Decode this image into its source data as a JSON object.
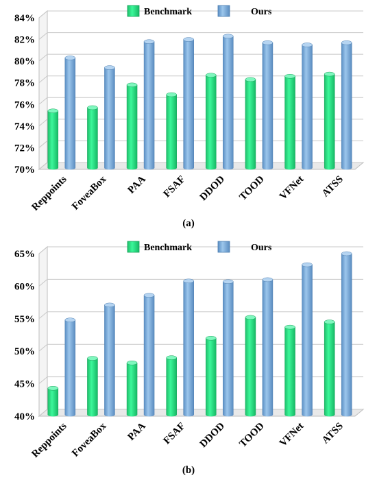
{
  "chart_data": [
    {
      "type": "bar",
      "caption": "(a)",
      "categories": [
        "Reppoints",
        "FoveaBox",
        "PAA",
        "FSAF",
        "DDOD",
        "TOOD",
        "VFNet",
        "ATSS"
      ],
      "series": [
        {
          "name": "Benchmark",
          "values": [
            75.4,
            75.7,
            77.8,
            76.9,
            78.7,
            78.3,
            78.6,
            78.8
          ]
        },
        {
          "name": "Ours",
          "values": [
            80.3,
            79.4,
            81.8,
            82.0,
            82.3,
            81.7,
            81.5,
            81.7
          ]
        }
      ],
      "yticks": [
        "70%",
        "72%",
        "74%",
        "76%",
        "78%",
        "80%",
        "82%",
        "84%"
      ],
      "ylim": [
        70,
        84
      ],
      "grid": true,
      "legend_position": "top-center",
      "colors": {
        "Benchmark": "#22ee88",
        "Ours": "#7eb0df"
      }
    },
    {
      "type": "bar",
      "caption": "(b)",
      "categories": [
        "Reppoints",
        "FoveaBox",
        "PAA",
        "FSAF",
        "DDOD",
        "TOOD",
        "VFNet",
        "ATSS"
      ],
      "series": [
        {
          "name": "Benchmark",
          "values": [
            44.3,
            48.9,
            48.2,
            49.0,
            52.0,
            55.2,
            53.7,
            54.5
          ]
        },
        {
          "name": "Ours",
          "values": [
            54.8,
            57.1,
            58.6,
            60.8,
            60.7,
            61.0,
            63.3,
            65.0
          ]
        }
      ],
      "yticks": [
        "40%",
        "45%",
        "50%",
        "55%",
        "60%",
        "65%"
      ],
      "ylim": [
        40,
        65
      ],
      "grid": true,
      "legend_position": "top-center",
      "colors": {
        "Benchmark": "#22ee88",
        "Ours": "#7eb0df"
      }
    }
  ]
}
